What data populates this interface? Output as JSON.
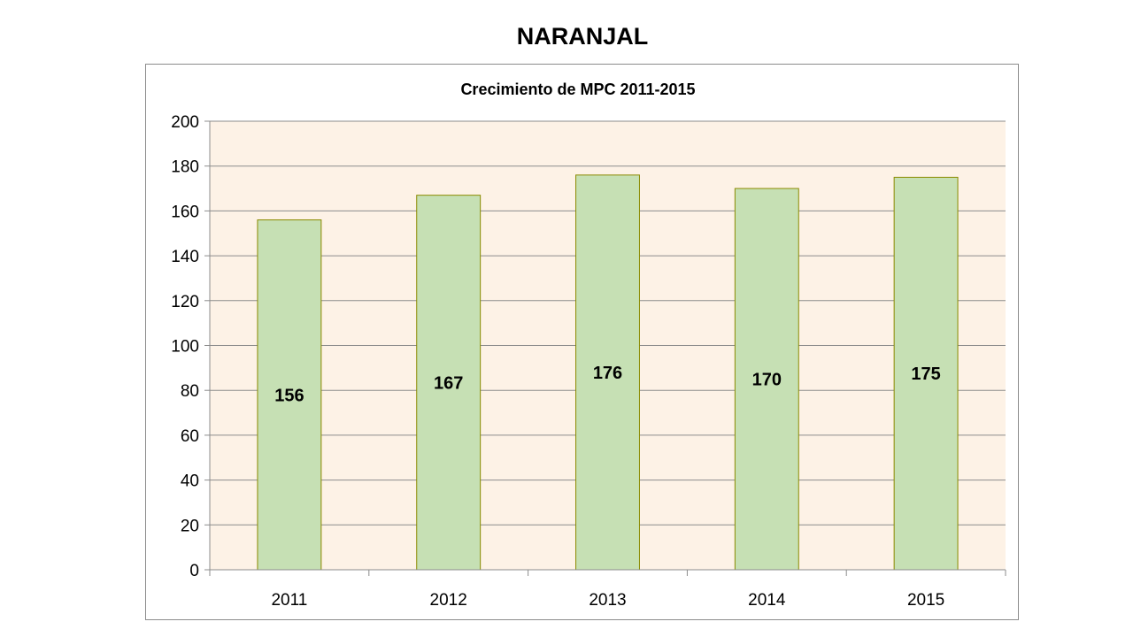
{
  "slide": {
    "title": "NARANJAL"
  },
  "chart_data": {
    "type": "bar",
    "title": "Crecimiento de MPC 2011-2015",
    "xlabel": "",
    "ylabel": "",
    "categories": [
      "2011",
      "2012",
      "2013",
      "2014",
      "2015"
    ],
    "values": [
      156,
      167,
      176,
      170,
      175
    ],
    "ylim": [
      0,
      200
    ],
    "yticks": [
      0,
      20,
      40,
      60,
      80,
      100,
      120,
      140,
      160,
      180,
      200
    ],
    "grid": true,
    "legend": "none",
    "colors": {
      "bar_fill": "#c6e0b4",
      "bar_stroke": "#8a8a00",
      "plot_background": "#fdf2e6",
      "gridline": "#8c8c8c",
      "axis": "#8c8c8c"
    }
  }
}
